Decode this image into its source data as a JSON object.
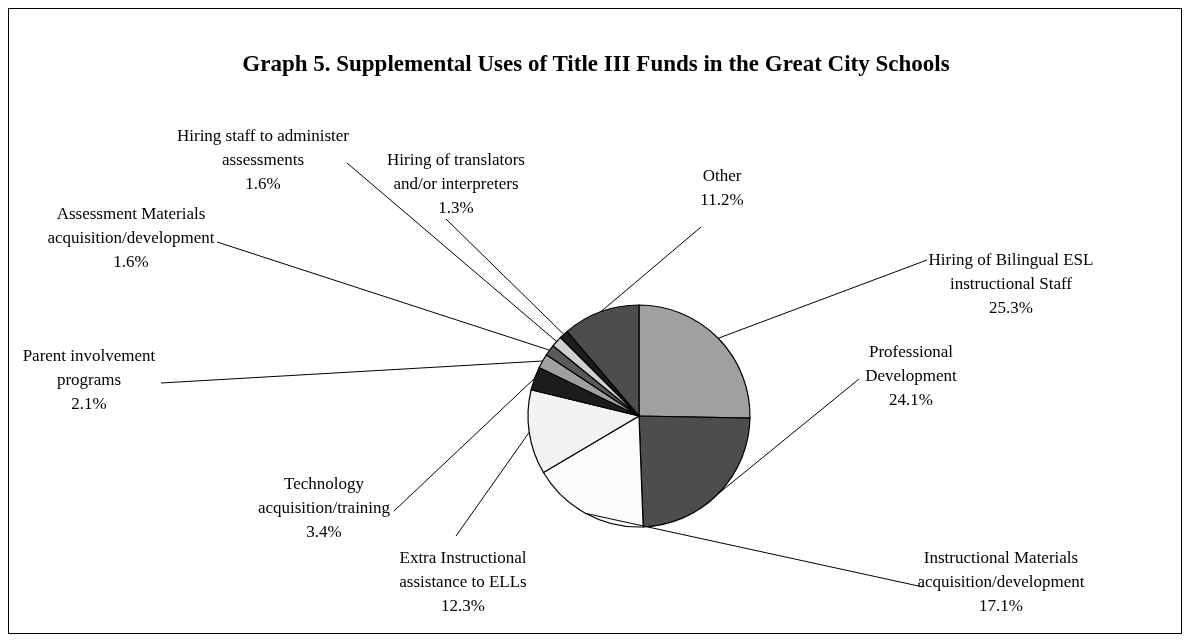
{
  "chart_data": {
    "type": "pie",
    "title": "Graph 5. Supplemental Uses of Title III Funds in the Great City Schools",
    "categories": [
      "Hiring of Bilingual ESL instructional Staff",
      "Professional Development",
      "Instructional Materials acquisition/development",
      "Extra Instructional assistance to ELLs",
      "Technology acquisition/training",
      "Parent involvement programs",
      "Assessment Materials acquisition/development",
      "Hiring staff to administer assessments",
      "Hiring of translators and/or interpreters",
      "Other"
    ],
    "values": [
      25.3,
      24.1,
      17.1,
      12.3,
      3.4,
      2.1,
      1.6,
      1.6,
      1.3,
      11.2
    ],
    "value_labels": [
      "25.3%",
      "24.1%",
      "17.1%",
      "12.3%",
      "3.4%",
      "2.1%",
      "1.6%",
      "1.6%",
      "1.3%",
      "11.2%"
    ],
    "colors": [
      "#a0a0a0",
      "#4d4d4d",
      "#fbfbfb",
      "#f2f2f2",
      "#1c1c1c",
      "#a0a0a0",
      "#5a5a5a",
      "#d0d0d0",
      "#1c1c1c",
      "#4d4d4d"
    ],
    "legend": false
  }
}
